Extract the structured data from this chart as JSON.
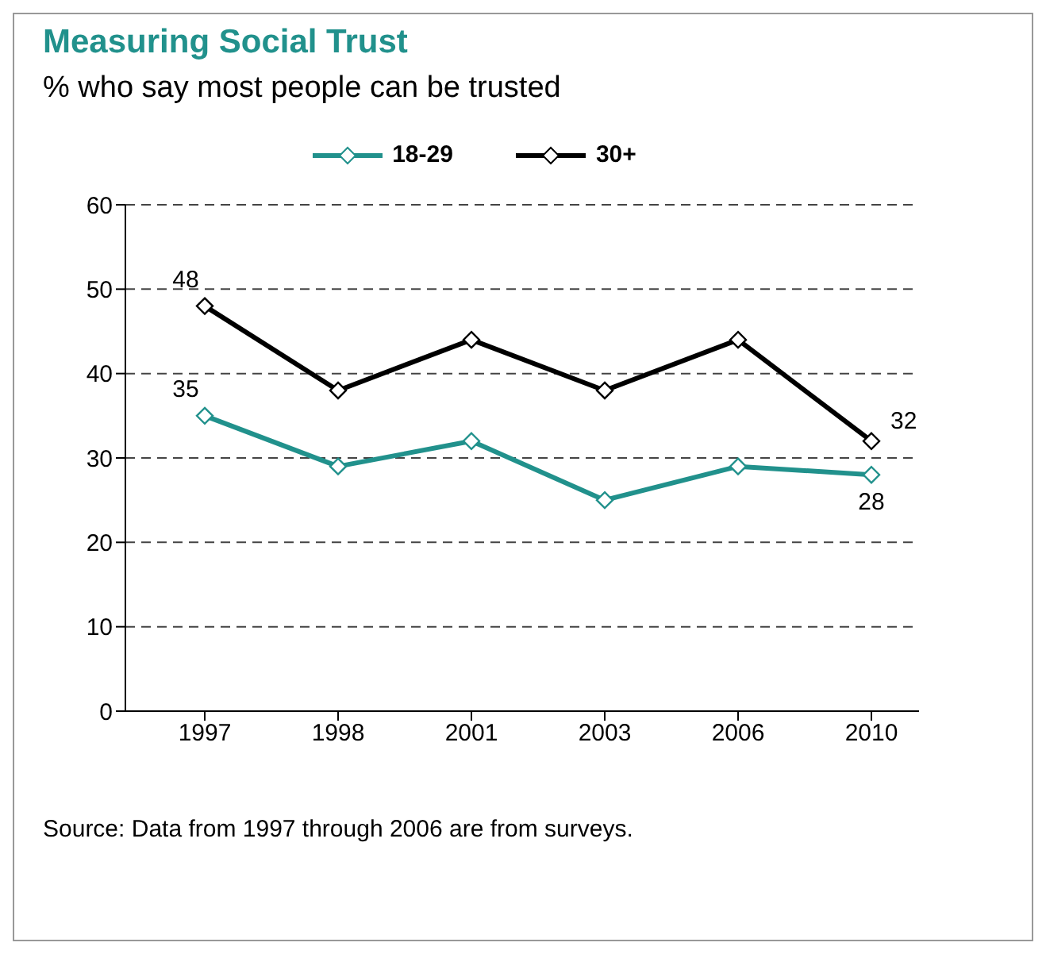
{
  "chart_data": {
    "type": "line",
    "title": "Measuring Social Trust",
    "subtitle": "% who say most people can be trusted",
    "categories": [
      "1997",
      "1998",
      "2001",
      "2003",
      "2006",
      "2010"
    ],
    "series": [
      {
        "name": "18-29",
        "color": "#21918c",
        "values": [
          35,
          29,
          32,
          25,
          29,
          28
        ],
        "value_labels": [
          "35",
          null,
          null,
          null,
          null,
          "28"
        ]
      },
      {
        "name": "30+",
        "color": "#000000",
        "values": [
          48,
          38,
          44,
          38,
          44,
          32
        ],
        "value_labels": [
          "48",
          null,
          null,
          null,
          null,
          "32"
        ]
      }
    ],
    "ylim": [
      0,
      60
    ],
    "yticks": [
      0,
      10,
      20,
      30,
      40,
      50,
      60
    ],
    "grid": "y",
    "legend": "top",
    "marker": "diamond",
    "line_style": "solid",
    "annotations": [
      "Source: Data from 1997 through 2006 are from surveys."
    ]
  }
}
